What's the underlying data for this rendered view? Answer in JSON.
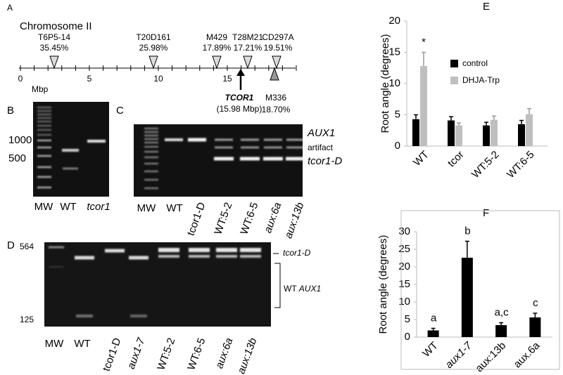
{
  "panel_labels": [
    "A",
    "B",
    "C",
    "D",
    "E",
    "F"
  ],
  "chromosome": {
    "title": "Chromosome II",
    "axis_label": "Mbp",
    "ticks": [
      0,
      5,
      10,
      15
    ],
    "markers": [
      {
        "name": "T6P5-14",
        "value": "35.45%"
      },
      {
        "name": "T20D161",
        "value": "25.98%"
      },
      {
        "name": "M429",
        "value": "17.89%"
      },
      {
        "name": "T28M21",
        "value": "17.21%"
      },
      {
        "name": "CD297A",
        "value": "19.51%"
      },
      {
        "name": "M336",
        "value": "18.70%"
      }
    ],
    "gene": {
      "name": "TCOR1",
      "position": "(15.98 Mbp)"
    }
  },
  "gel_b": {
    "left_labels": [
      "1000",
      "500"
    ],
    "lanes": [
      "MW",
      "WT",
      "tcor1"
    ]
  },
  "gel_c": {
    "right_labels": [
      "AUX1",
      "artifact",
      "tcor1-D"
    ],
    "lanes": [
      "MW",
      "WT",
      "tcor1-D",
      "WT:5-2",
      "WT:6-5",
      "aux:6a",
      "aux:13b"
    ]
  },
  "gel_d": {
    "left_labels": [
      "564",
      "125"
    ],
    "right_label": "tcor1-D",
    "bracket_label": [
      "WT",
      "AUX1"
    ],
    "lanes": [
      "MW",
      "WT",
      "tcor1-D",
      "aux1-7",
      "WT:5-2",
      "WT:6-5",
      "aux:6a",
      "aux:13b"
    ]
  },
  "chart_data": [
    {
      "type": "bar",
      "ylabel": "Root angle (degrees)",
      "categories": [
        "WT",
        "tcor",
        "WT:5-2",
        "WT:6-5"
      ],
      "series": [
        {
          "name": "control",
          "color": "#000000",
          "values": [
            4.3,
            4.1,
            3.3,
            3.5
          ],
          "errors": [
            0.7,
            0.6,
            0.5,
            0.6
          ]
        },
        {
          "name": "DHJA-Trp",
          "color": "#bfbfbf",
          "values": [
            12.8,
            3.3,
            4.2,
            5.1
          ],
          "errors": [
            2.2,
            0.4,
            0.6,
            0.9
          ]
        }
      ],
      "annotations": [
        "*",
        null,
        null,
        null
      ],
      "ylim": [
        0,
        20
      ],
      "yticks": [
        0,
        5,
        10,
        15,
        20
      ]
    },
    {
      "type": "bar",
      "ylabel": "Root angle (degrees)",
      "categories": [
        "WT",
        "aux1-7",
        "aux:13b",
        "aux.6a"
      ],
      "values": [
        1.9,
        22.6,
        3.4,
        5.6
      ],
      "errors": [
        0.6,
        4.7,
        0.7,
        1.2
      ],
      "color": "#000000",
      "annotations": [
        "a",
        "b",
        "a,c",
        "c"
      ],
      "ylim": [
        0,
        30
      ],
      "yticks": [
        0,
        5,
        10,
        15,
        20,
        25,
        30
      ]
    }
  ]
}
